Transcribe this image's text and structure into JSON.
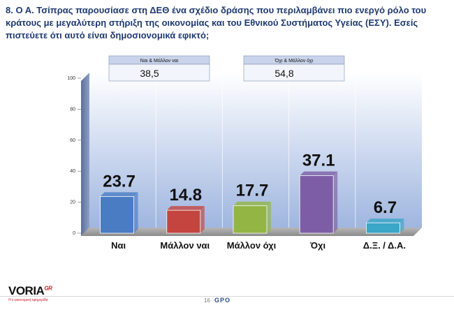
{
  "title": "8. Ο Α. Τσίπρας παρουσίασε στη ΔΕΘ ένα σχέδιο δράσης που περιλαμβάνει πιο ενεργό ρόλο του κράτους με μεγαλύτερη στήριξη της οικονομίας και του Εθνικού Συστήματος Υγείας (ΕΣΥ). Εσείς πιστεύετε ότι αυτό είναι δημοσιονομικά εφικτό;",
  "summary_boxes": [
    {
      "label": "Ναι & Μάλλον ναι",
      "value": "38,5"
    },
    {
      "label": "Όχι & Μάλλον όχι",
      "value": "54,8"
    }
  ],
  "chart_data": {
    "type": "bar",
    "categories": [
      "Ναι",
      "Μάλλον ναι",
      "Μάλλον όχι",
      "Όχι",
      "Δ.Ξ. / Δ.Α."
    ],
    "values": [
      23.7,
      14.8,
      17.7,
      37.1,
      6.7
    ],
    "value_labels": [
      "23.7",
      "14.8",
      "17.7",
      "37.1",
      "6.7"
    ],
    "colors": [
      "#4a7cc4",
      "#c4453f",
      "#93b543",
      "#7d5ea6",
      "#3aa6c8"
    ],
    "ylim": [
      0,
      100
    ],
    "yticks": [
      0,
      20,
      40,
      60,
      80,
      100
    ],
    "ytick_labels": [
      "0",
      "20",
      "40",
      "60",
      "80",
      "100"
    ],
    "grid": false
  },
  "footer": {
    "logo": "VORIA",
    "logo_suffix": "GR",
    "logo_tagline": "Η ε-οικονομική εφημερίδα",
    "page_number": "16",
    "gpo": "GPO"
  }
}
